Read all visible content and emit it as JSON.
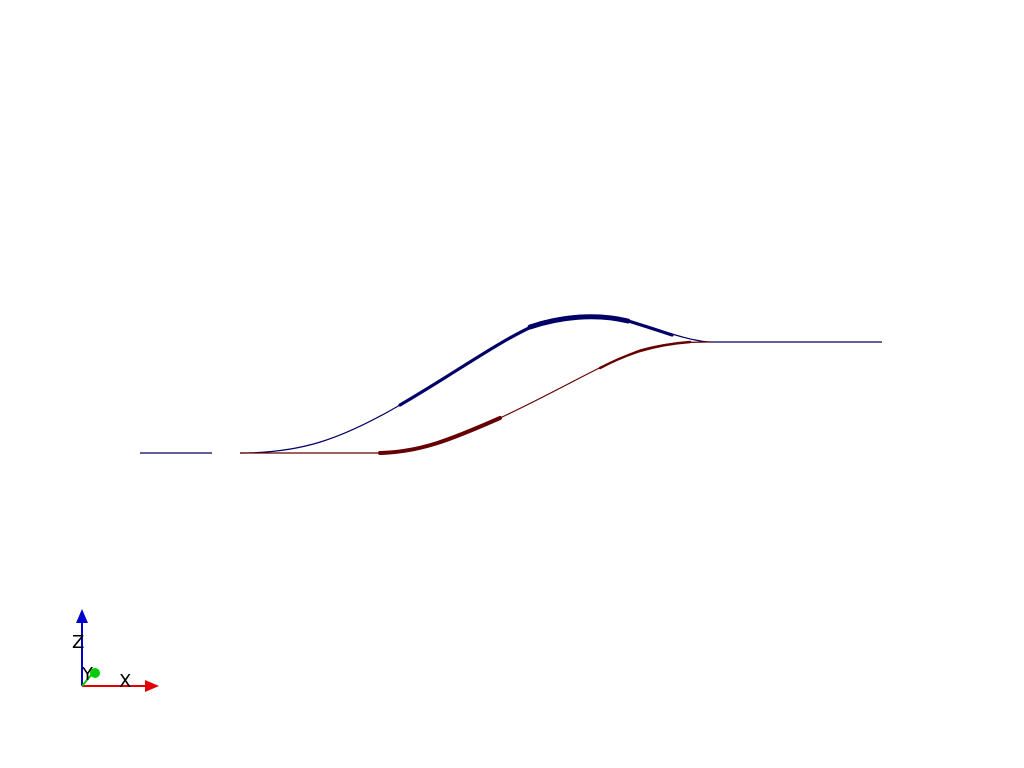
{
  "scene": {
    "background": "#ffffff",
    "curves": [
      {
        "id": "upper-curve",
        "color": "#000066"
      },
      {
        "id": "lower-curve",
        "color": "#660000"
      }
    ]
  },
  "orientation_widget": {
    "axes": [
      {
        "label": "X",
        "color": "#e00000"
      },
      {
        "label": "Y",
        "color": "#00cc00"
      },
      {
        "label": "Z",
        "color": "#0000cc"
      }
    ]
  }
}
